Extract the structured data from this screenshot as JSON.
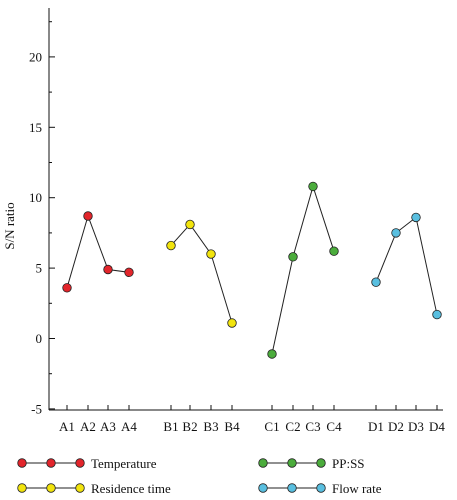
{
  "chart_data": {
    "type": "line",
    "ylabel": "S/N ratio",
    "xlabel": "",
    "ylim": [
      -5,
      24
    ],
    "yticks": [
      -5,
      0,
      5,
      10,
      15,
      20
    ],
    "grid": false,
    "legend_position": "bottom",
    "series": [
      {
        "name": "Temperature",
        "color": "#e2252b",
        "categories": [
          "A1",
          "A2",
          "A3",
          "A4"
        ],
        "values": [
          3.6,
          8.7,
          4.9,
          4.7
        ]
      },
      {
        "name": "Residence time",
        "color": "#f2e40d",
        "categories": [
          "B1",
          "B2",
          "B3",
          "B4"
        ],
        "values": [
          6.6,
          8.1,
          6.0,
          1.1
        ]
      },
      {
        "name": "PP:SS",
        "color": "#4bac3c",
        "categories": [
          "C1",
          "C2",
          "C3",
          "C4"
        ],
        "values": [
          -1.1,
          5.8,
          10.8,
          6.2
        ]
      },
      {
        "name": "Flow rate",
        "color": "#59bfe0",
        "categories": [
          "D1",
          "D2",
          "D3",
          "D4"
        ],
        "values": [
          4.0,
          7.5,
          8.6,
          1.7
        ]
      }
    ]
  }
}
